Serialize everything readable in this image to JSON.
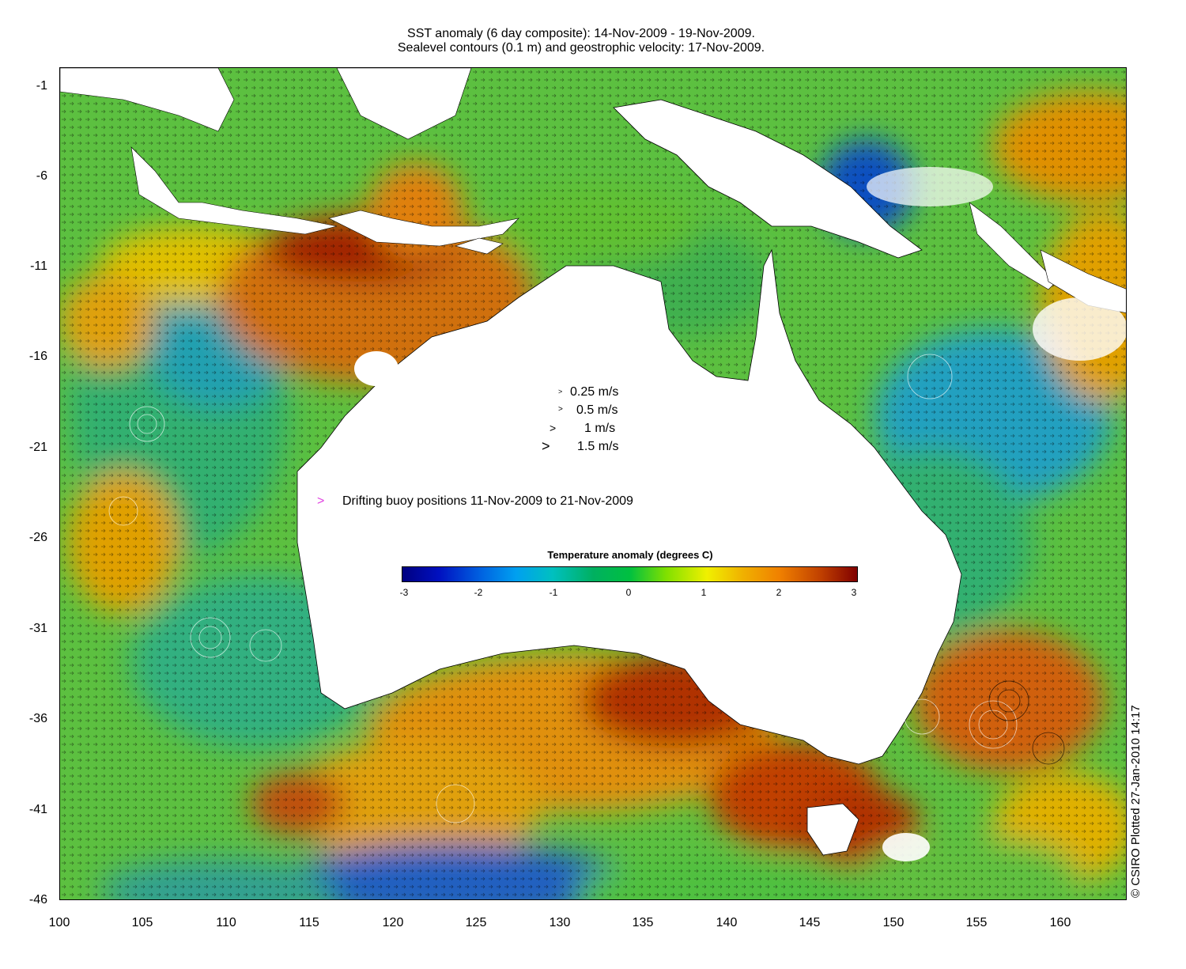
{
  "title_line1": "SST anomaly (6 day composite): 14-Nov-2009 - 19-Nov-2009.",
  "title_line2": "Sealevel contours (0.1 m) and geostrophic velocity: 17-Nov-2009.",
  "y_ticks": [
    "-1",
    "-6",
    "-11",
    "-16",
    "-21",
    "-26",
    "-31",
    "-36",
    "-41",
    "-46"
  ],
  "x_ticks": [
    "100",
    "105",
    "110",
    "115",
    "120",
    "125",
    "130",
    "135",
    "140",
    "145",
    "150",
    "155",
    "160"
  ],
  "velocity_legend": [
    "0.25 m/s",
    "0.5 m/s",
    "1 m/s",
    "1.5 m/s"
  ],
  "buoy_legend": "Drifting buoy positions 11-Nov-2009 to 21-Nov-2009",
  "colorbar": {
    "title": "Temperature anomaly (degrees C)",
    "ticks": [
      "-3",
      "-2",
      "-1",
      "0",
      "1",
      "2",
      "3"
    ]
  },
  "copyright": "© CSIRO Plotted 27-Jan-2010 14:17",
  "colors": {
    "land": "#ffffff",
    "buoy_marker": "#e040e0",
    "warm": "#d06010",
    "hot": "#a02000",
    "mild_warm": "#e8c000",
    "neutral": "#60c030",
    "cool": "#20b070",
    "cold": "#10a0d0"
  },
  "chart_data": {
    "type": "heatmap",
    "xlim": [
      100,
      164
    ],
    "ylim": [
      -46,
      0.5
    ],
    "colorbar_range": [
      -3,
      3
    ]
  }
}
